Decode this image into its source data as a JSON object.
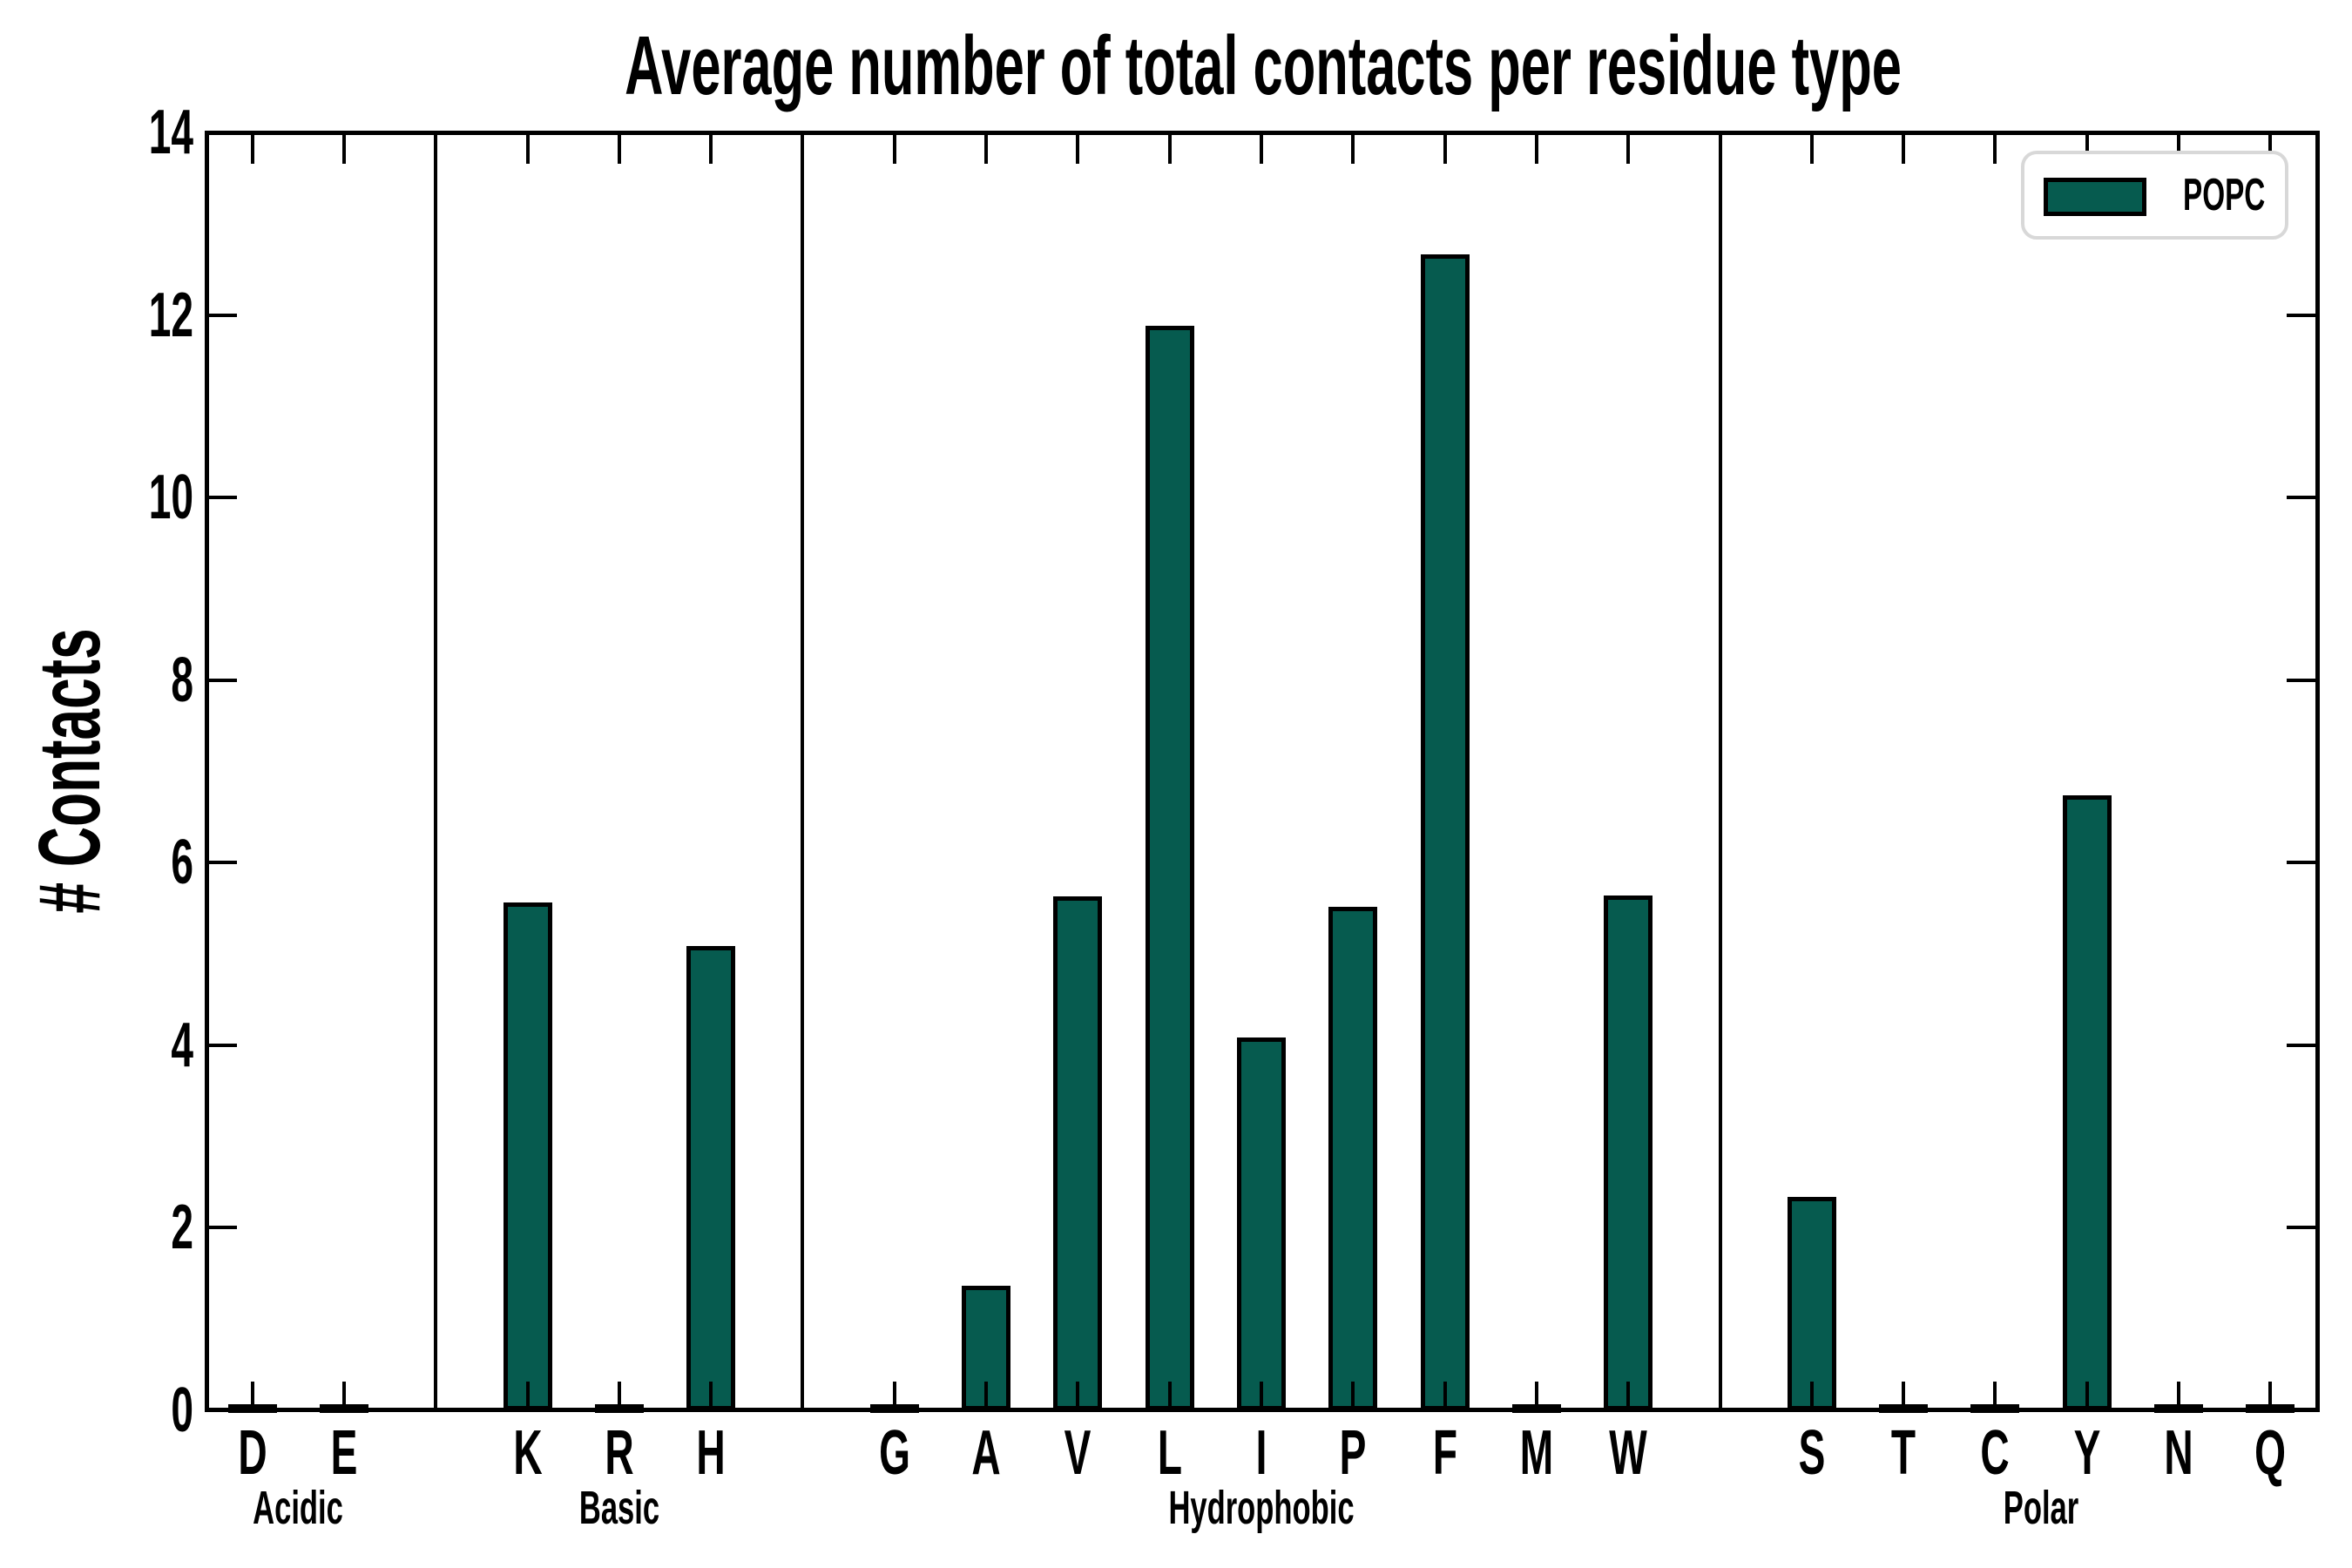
{
  "title": "Average number of total contacts per residue type",
  "y_axis": {
    "label": "# Contacts",
    "min": 0,
    "max": 14,
    "ticks": [
      0,
      2,
      4,
      6,
      8,
      10,
      12,
      14
    ]
  },
  "legend": {
    "label": "POPC"
  },
  "colors": {
    "bar_fill": "#065B4F",
    "bar_edge": "#000000",
    "axis": "#000000",
    "legend_border": "#D8D8D8",
    "background": "#FFFFFF"
  },
  "chart_data": {
    "type": "bar",
    "title": "Average number of total contacts per residue type",
    "xlabel": "",
    "ylabel": "# Contacts",
    "ylim": [
      0,
      14
    ],
    "grid": false,
    "legend_position": "upper right",
    "series_name": "POPC",
    "categories": [
      "D",
      "E",
      "K",
      "R",
      "H",
      "G",
      "A",
      "V",
      "L",
      "I",
      "P",
      "F",
      "M",
      "W",
      "S",
      "T",
      "C",
      "Y",
      "N",
      "Q"
    ],
    "values": [
      0.02,
      0.02,
      5.56,
      0.02,
      5.09,
      0.02,
      1.36,
      5.63,
      11.88,
      4.08,
      5.52,
      12.66,
      0.03,
      5.64,
      2.34,
      0.02,
      0.02,
      6.74,
      0.02,
      0.02
    ],
    "groups": [
      {
        "label": "Acidic",
        "categories": [
          "D",
          "E"
        ],
        "values": [
          0.02,
          0.02
        ]
      },
      {
        "label": "Basic",
        "categories": [
          "K",
          "R",
          "H"
        ],
        "values": [
          5.56,
          0.02,
          5.09
        ]
      },
      {
        "label": "Hydrophobic",
        "categories": [
          "G",
          "A",
          "V",
          "L",
          "I",
          "P",
          "F",
          "M",
          "W"
        ],
        "values": [
          0.02,
          1.36,
          5.63,
          11.88,
          4.08,
          5.52,
          12.66,
          0.03,
          5.64
        ]
      },
      {
        "label": "Polar",
        "categories": [
          "S",
          "T",
          "C",
          "Y",
          "N",
          "Q"
        ],
        "values": [
          2.34,
          0.02,
          0.02,
          6.74,
          0.02,
          0.02
        ]
      }
    ]
  }
}
